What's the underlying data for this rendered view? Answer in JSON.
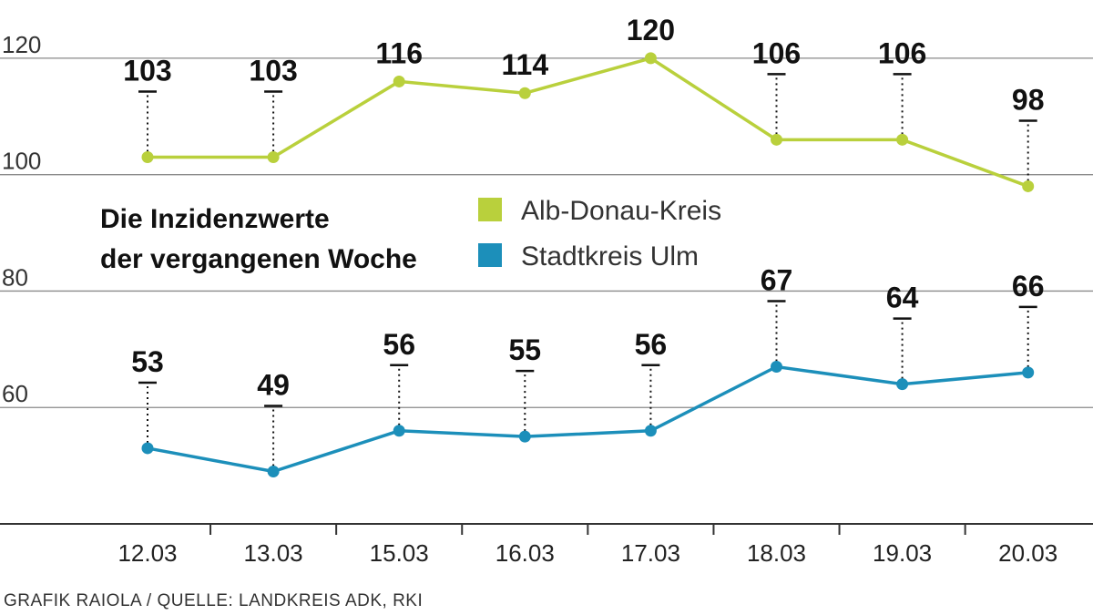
{
  "chart_data": {
    "type": "line",
    "title": [
      "Die Inzidenzwerte",
      "der vergangenen Woche"
    ],
    "source": "GRAFIK RAIOLA / QUELLE: LANDKREIS ADK, RKI",
    "categories": [
      "12.03",
      "13.03",
      "15.03",
      "16.03",
      "17.03",
      "18.03",
      "19.03",
      "20.03"
    ],
    "series": [
      {
        "name": "Alb-Donau-Kreis",
        "color": "#b9d03c",
        "values": [
          103,
          103,
          116,
          114,
          120,
          106,
          106,
          98
        ]
      },
      {
        "name": "Stadtkreis Ulm",
        "color": "#1c8fba",
        "values": [
          53,
          49,
          56,
          55,
          56,
          67,
          64,
          66
        ]
      }
    ],
    "ylim": [
      40,
      130
    ],
    "yticks": [
      60,
      80,
      100,
      120
    ],
    "grid": true
  }
}
